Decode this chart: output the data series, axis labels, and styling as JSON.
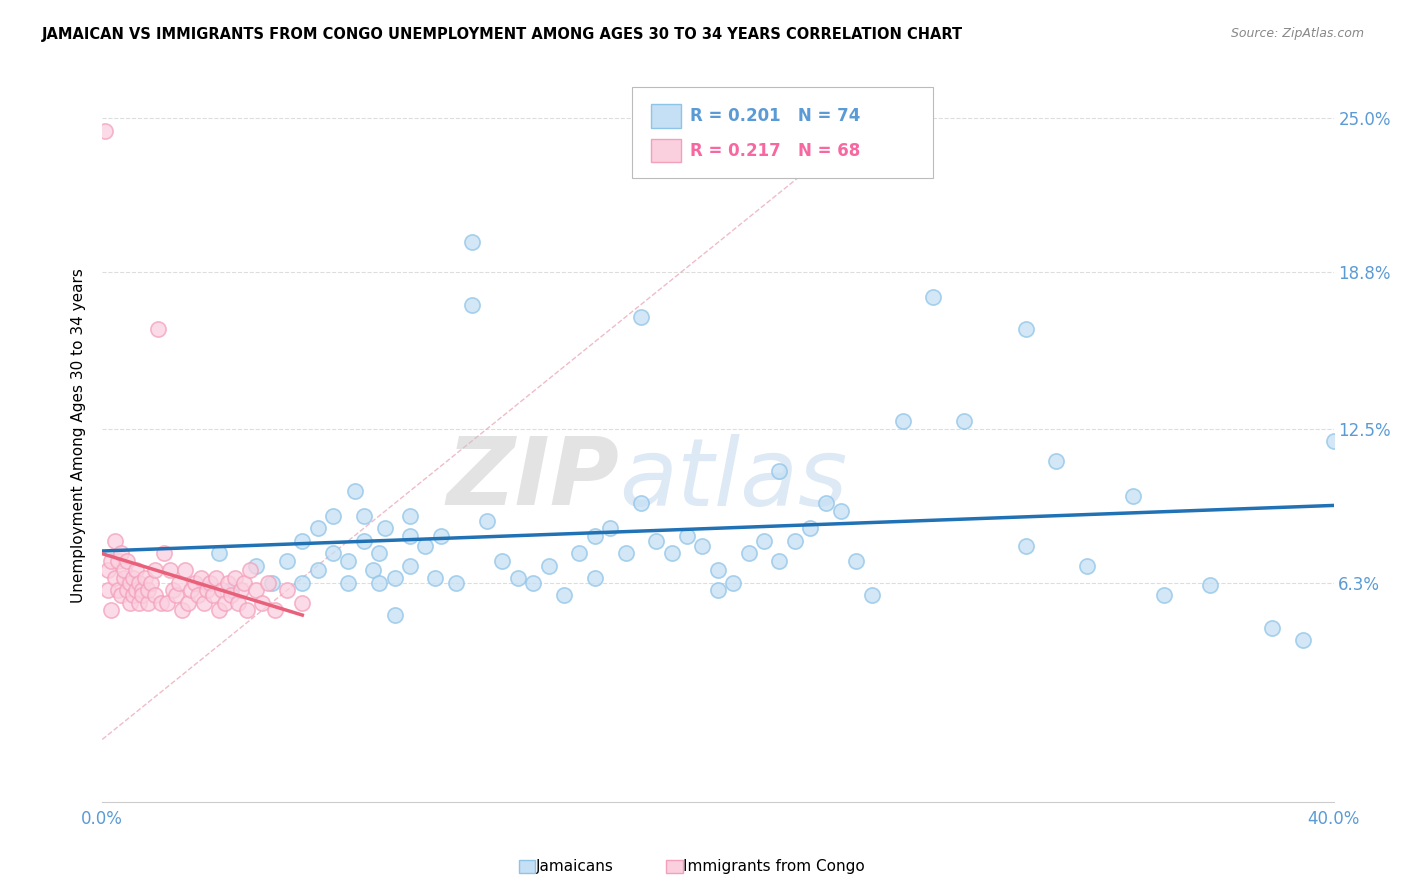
{
  "title": "JAMAICAN VS IMMIGRANTS FROM CONGO UNEMPLOYMENT AMONG AGES 30 TO 34 YEARS CORRELATION CHART",
  "source": "Source: ZipAtlas.com",
  "ylabel": "Unemployment Among Ages 30 to 34 years",
  "ytick_labels": [
    "25.0%",
    "18.8%",
    "12.5%",
    "6.3%"
  ],
  "ytick_values": [
    0.25,
    0.188,
    0.125,
    0.063
  ],
  "xlim": [
    0.0,
    0.4
  ],
  "ylim": [
    -0.025,
    0.27
  ],
  "legend_blue_r": "0.201",
  "legend_blue_n": "74",
  "legend_pink_r": "0.217",
  "legend_pink_n": "68",
  "legend_blue_label": "Jamaicans",
  "legend_pink_label": "Immigrants from Congo",
  "watermark_zip": "ZIP",
  "watermark_atlas": "atlas",
  "blue_color": "#8ec4e8",
  "blue_fill": "#c5dff4",
  "pink_color": "#f4a0bb",
  "pink_fill": "#fad0df",
  "line_blue_color": "#2171b5",
  "line_pink_color": "#e8607a",
  "diag_line_color": "#e8a0b0",
  "grid_color": "#dddddd",
  "background_color": "#ffffff",
  "blue_scatter_x": [
    0.038,
    0.042,
    0.05,
    0.055,
    0.06,
    0.065,
    0.065,
    0.07,
    0.07,
    0.075,
    0.075,
    0.08,
    0.08,
    0.082,
    0.085,
    0.085,
    0.088,
    0.09,
    0.09,
    0.092,
    0.095,
    0.095,
    0.1,
    0.1,
    0.1,
    0.105,
    0.108,
    0.11,
    0.115,
    0.12,
    0.12,
    0.125,
    0.13,
    0.135,
    0.14,
    0.145,
    0.15,
    0.155,
    0.16,
    0.16,
    0.165,
    0.17,
    0.175,
    0.18,
    0.185,
    0.19,
    0.195,
    0.2,
    0.2,
    0.205,
    0.21,
    0.215,
    0.22,
    0.225,
    0.23,
    0.235,
    0.24,
    0.245,
    0.25,
    0.26,
    0.27,
    0.28,
    0.3,
    0.31,
    0.32,
    0.335,
    0.345,
    0.36,
    0.38,
    0.39,
    0.4,
    0.175,
    0.22,
    0.3
  ],
  "blue_scatter_y": [
    0.075,
    0.06,
    0.07,
    0.063,
    0.072,
    0.08,
    0.063,
    0.085,
    0.068,
    0.09,
    0.075,
    0.063,
    0.072,
    0.1,
    0.08,
    0.09,
    0.068,
    0.075,
    0.063,
    0.085,
    0.065,
    0.05,
    0.07,
    0.082,
    0.09,
    0.078,
    0.065,
    0.082,
    0.063,
    0.175,
    0.2,
    0.088,
    0.072,
    0.065,
    0.063,
    0.07,
    0.058,
    0.075,
    0.082,
    0.065,
    0.085,
    0.075,
    0.095,
    0.08,
    0.075,
    0.082,
    0.078,
    0.06,
    0.068,
    0.063,
    0.075,
    0.08,
    0.072,
    0.08,
    0.085,
    0.095,
    0.092,
    0.072,
    0.058,
    0.128,
    0.178,
    0.128,
    0.078,
    0.112,
    0.07,
    0.098,
    0.058,
    0.062,
    0.045,
    0.04,
    0.12,
    0.17,
    0.108,
    0.165
  ],
  "pink_scatter_x": [
    0.001,
    0.002,
    0.002,
    0.003,
    0.003,
    0.004,
    0.004,
    0.005,
    0.005,
    0.006,
    0.006,
    0.007,
    0.007,
    0.008,
    0.008,
    0.009,
    0.009,
    0.01,
    0.01,
    0.011,
    0.011,
    0.012,
    0.012,
    0.013,
    0.013,
    0.014,
    0.015,
    0.015,
    0.016,
    0.017,
    0.017,
    0.018,
    0.019,
    0.02,
    0.021,
    0.022,
    0.023,
    0.024,
    0.025,
    0.026,
    0.027,
    0.028,
    0.029,
    0.03,
    0.031,
    0.032,
    0.033,
    0.034,
    0.035,
    0.036,
    0.037,
    0.038,
    0.039,
    0.04,
    0.041,
    0.042,
    0.043,
    0.044,
    0.045,
    0.046,
    0.047,
    0.048,
    0.05,
    0.052,
    0.054,
    0.056,
    0.06,
    0.065
  ],
  "pink_scatter_y": [
    0.245,
    0.06,
    0.068,
    0.072,
    0.052,
    0.08,
    0.065,
    0.06,
    0.072,
    0.075,
    0.058,
    0.065,
    0.068,
    0.06,
    0.072,
    0.055,
    0.063,
    0.058,
    0.065,
    0.06,
    0.068,
    0.055,
    0.063,
    0.06,
    0.058,
    0.065,
    0.055,
    0.06,
    0.063,
    0.058,
    0.068,
    0.165,
    0.055,
    0.075,
    0.055,
    0.068,
    0.06,
    0.058,
    0.063,
    0.052,
    0.068,
    0.055,
    0.06,
    0.063,
    0.058,
    0.065,
    0.055,
    0.06,
    0.063,
    0.058,
    0.065,
    0.052,
    0.06,
    0.055,
    0.063,
    0.058,
    0.065,
    0.055,
    0.06,
    0.063,
    0.052,
    0.068,
    0.06,
    0.055,
    0.063,
    0.052,
    0.06,
    0.055
  ]
}
